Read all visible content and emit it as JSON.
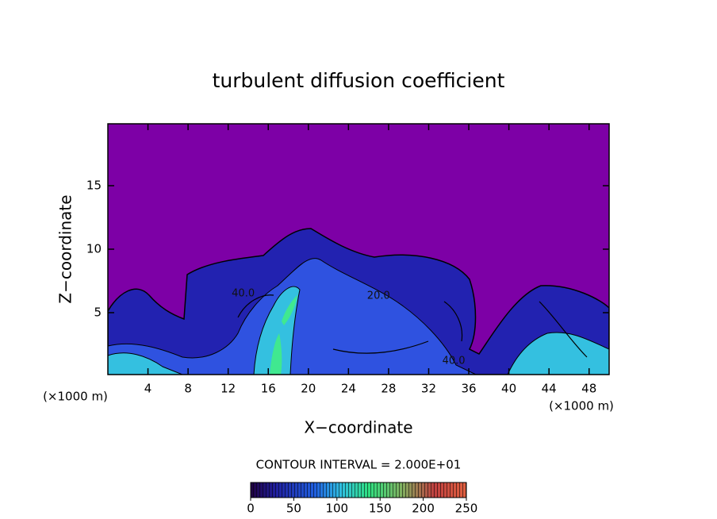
{
  "chart_data": {
    "type": "contour",
    "title": "turbulent diffusion coefficient",
    "x_label": "X−coordinate",
    "y_label": "Z−coordinate",
    "x_unit_left": "(×1000 m)",
    "x_unit_right": "(×1000 m)",
    "xlim": [
      0,
      50
    ],
    "ylim": [
      0.125,
      19.875
    ],
    "xticks": [
      4,
      8,
      12,
      16,
      20,
      24,
      28,
      32,
      36,
      40,
      44,
      48
    ],
    "yticks": [
      5,
      10,
      15
    ],
    "contour_note": "CONTOUR INTERVAL = 2.000E+01",
    "annotations": [
      {
        "text": "40.0",
        "x": 13.5,
        "z": 6.5
      },
      {
        "text": "20.0",
        "x": 27,
        "z": 6.3
      },
      {
        "text": "40.0",
        "x": 34.5,
        "z": 1.2
      }
    ],
    "colorbar": {
      "lim": [
        0,
        250
      ],
      "ticks": [
        0,
        50,
        100,
        150,
        200,
        250
      ]
    }
  }
}
